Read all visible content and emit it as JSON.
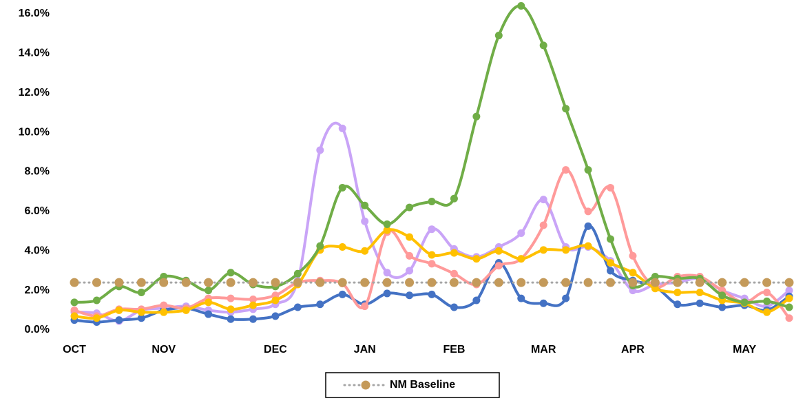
{
  "chart_data": {
    "type": "line",
    "categories": [
      "OCT",
      null,
      null,
      null,
      "NOV",
      null,
      null,
      null,
      null,
      "DEC",
      null,
      null,
      null,
      "JAN",
      null,
      null,
      null,
      "FEB",
      null,
      null,
      null,
      "MAR",
      null,
      null,
      null,
      "APR",
      null,
      null,
      null,
      null,
      "MAY",
      null,
      null
    ],
    "ylim": [
      0,
      16.5
    ],
    "yticks": [
      {
        "value": 0,
        "label": "0.0%"
      },
      {
        "value": 2,
        "label": "2.0%"
      },
      {
        "value": 4,
        "label": "4.0%"
      },
      {
        "value": 6,
        "label": "6.0%"
      },
      {
        "value": 8,
        "label": "8.0%"
      },
      {
        "value": 10,
        "label": "10.0%"
      },
      {
        "value": 12,
        "label": "12.0%"
      },
      {
        "value": 14,
        "label": "14.0%"
      },
      {
        "value": 16,
        "label": "16.0%"
      }
    ],
    "grid": false,
    "smooth": true,
    "legend": "bottom",
    "series": [
      {
        "color": "#c9a4f7",
        "values": [
          0.9,
          0.85,
          0.45,
          1.0,
          1.1,
          1.2,
          1.0,
          0.9,
          1.05,
          1.3,
          2.5,
          9.1,
          10.2,
          5.5,
          2.9,
          3.0,
          5.1,
          4.1,
          3.7,
          4.2,
          4.9,
          6.6,
          4.2,
          4.2,
          3.5,
          2.0,
          2.3,
          2.4,
          2.6,
          2.0,
          1.6,
          1.2,
          2.0
        ]
      },
      {
        "color": "#4472c4",
        "values": [
          0.5,
          0.4,
          0.5,
          0.6,
          1.0,
          1.1,
          0.8,
          0.55,
          0.55,
          0.7,
          1.15,
          1.3,
          1.8,
          1.3,
          1.85,
          1.75,
          1.8,
          1.15,
          1.5,
          3.4,
          1.6,
          1.35,
          1.6,
          5.25,
          3.0,
          2.5,
          2.2,
          1.3,
          1.35,
          1.15,
          1.25,
          1.0,
          1.7
        ]
      },
      {
        "color": "#ff9a9a",
        "values": [
          1.0,
          0.7,
          1.05,
          1.05,
          1.25,
          1.1,
          1.6,
          1.6,
          1.55,
          1.75,
          2.4,
          2.5,
          2.35,
          1.2,
          4.95,
          3.75,
          3.35,
          2.85,
          2.3,
          3.25,
          3.6,
          5.3,
          8.1,
          6.0,
          7.2,
          3.75,
          2.2,
          2.7,
          2.7,
          2.0,
          1.4,
          1.9,
          0.6
        ]
      },
      {
        "color": "#ffc000",
        "values": [
          0.7,
          0.6,
          1.0,
          0.9,
          0.9,
          1.0,
          1.4,
          1.05,
          1.25,
          1.5,
          2.3,
          4.05,
          4.2,
          4.0,
          5.05,
          4.7,
          3.8,
          3.9,
          3.6,
          4.0,
          3.6,
          4.05,
          4.05,
          4.25,
          3.4,
          2.9,
          2.1,
          1.9,
          1.9,
          1.5,
          1.35,
          0.9,
          1.6
        ]
      },
      {
        "color": "#70ad47",
        "values": [
          1.4,
          1.5,
          2.2,
          1.9,
          2.7,
          2.5,
          2.0,
          2.9,
          2.3,
          2.2,
          2.85,
          4.25,
          7.2,
          6.3,
          5.35,
          6.2,
          6.5,
          6.65,
          10.8,
          14.9,
          16.4,
          14.4,
          11.2,
          8.1,
          4.6,
          2.25,
          2.7,
          2.6,
          2.6,
          1.75,
          1.4,
          1.45,
          1.15
        ]
      },
      {
        "name": "NM Baseline",
        "color": "#c49a5a",
        "line_color": "#a5a5a5",
        "dashed": true,
        "values": [
          2.4,
          2.4,
          2.4,
          2.4,
          2.4,
          2.4,
          2.4,
          2.4,
          2.4,
          2.4,
          2.4,
          2.4,
          2.4,
          2.4,
          2.4,
          2.4,
          2.4,
          2.4,
          2.4,
          2.4,
          2.4,
          2.4,
          2.4,
          2.4,
          2.4,
          2.4,
          2.4,
          2.4,
          2.4,
          2.4,
          2.4,
          2.4,
          2.4
        ]
      }
    ]
  }
}
